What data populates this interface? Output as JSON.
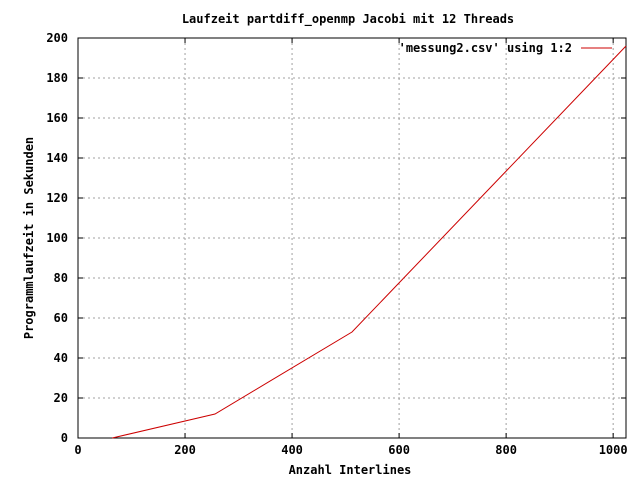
{
  "chart_data": {
    "type": "line",
    "title": "Laufzeit partdiff_openmp Jacobi mit 12 Threads",
    "xlabel": "Anzahl Interlines",
    "ylabel": "Programmlaufzeit in Sekunden",
    "xlim": [
      0,
      1024
    ],
    "ylim": [
      0,
      200
    ],
    "xticks": [
      0,
      200,
      400,
      600,
      800,
      1000
    ],
    "yticks": [
      0,
      20,
      40,
      60,
      80,
      100,
      120,
      140,
      160,
      180,
      200
    ],
    "grid": true,
    "legend_position": "top-right",
    "series": [
      {
        "name": "'messung2.csv' using 1:2",
        "color": "#cc0000",
        "x": [
          64,
          256,
          512,
          1024
        ],
        "y": [
          0,
          12,
          53,
          196
        ]
      }
    ]
  }
}
